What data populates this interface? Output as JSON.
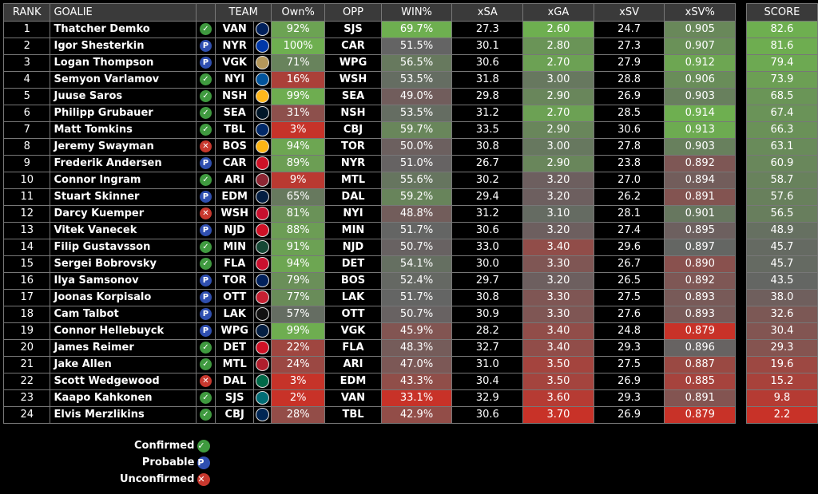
{
  "headers": {
    "rank": "RANK",
    "goalie": "GOALIE",
    "team": "TEAM",
    "own": "Own%",
    "opp": "OPP",
    "win": "WIN%",
    "xsa": "xSA",
    "xga": "xGA",
    "xsv": "xSV",
    "xsvp": "xSV%",
    "score": "SCORE"
  },
  "status_legend": {
    "C": {
      "label": "Confirmed",
      "glyph": "✓",
      "color": "#3f9a3f"
    },
    "P": {
      "label": "Probable",
      "glyph": "P",
      "color": "#2f4fb0"
    },
    "U": {
      "label": "Unconfirmed",
      "glyph": "✕",
      "color": "#c8382e"
    }
  },
  "team_colors": {
    "VAN": "#00205b",
    "NYR": "#0038a8",
    "VGK": "#b4975a",
    "NYI": "#00539b",
    "NSH": "#ffb81c",
    "SEA": "#001628",
    "TBL": "#002868",
    "BOS": "#fcb514",
    "CAR": "#ce1126",
    "ARI": "#8c2633",
    "EDM": "#041e42",
    "WSH": "#c8102e",
    "NJD": "#ce1126",
    "MIN": "#154734",
    "FLA": "#c8102e",
    "TOR": "#00205b",
    "OTT": "#c52032",
    "LAK": "#111111",
    "WPG": "#041e42",
    "DET": "#ce1126",
    "MTL": "#af1e2d",
    "DAL": "#006847",
    "SJS": "#006d75",
    "CBJ": "#002654"
  },
  "rows": [
    {
      "rank": "1",
      "goalie": "Thatcher Demko",
      "status": "C",
      "team": "VAN",
      "own": "92%",
      "opp": "SJS",
      "win": "69.7%",
      "xsa": "27.3",
      "xga": "2.60",
      "xsv": "24.7",
      "xsvp": "0.905",
      "score": "82.6"
    },
    {
      "rank": "2",
      "goalie": "Igor Shesterkin",
      "status": "P",
      "team": "NYR",
      "own": "100%",
      "opp": "CAR",
      "win": "51.5%",
      "xsa": "30.1",
      "xga": "2.80",
      "xsv": "27.3",
      "xsvp": "0.907",
      "score": "81.6"
    },
    {
      "rank": "3",
      "goalie": "Logan Thompson",
      "status": "P",
      "team": "VGK",
      "own": "71%",
      "opp": "WPG",
      "win": "56.5%",
      "xsa": "30.6",
      "xga": "2.70",
      "xsv": "27.9",
      "xsvp": "0.912",
      "score": "79.4"
    },
    {
      "rank": "4",
      "goalie": "Semyon Varlamov",
      "status": "C",
      "team": "NYI",
      "own": "16%",
      "opp": "WSH",
      "win": "53.5%",
      "xsa": "31.8",
      "xga": "3.00",
      "xsv": "28.8",
      "xsvp": "0.906",
      "score": "73.9"
    },
    {
      "rank": "5",
      "goalie": "Juuse Saros",
      "status": "C",
      "team": "NSH",
      "own": "99%",
      "opp": "SEA",
      "win": "49.0%",
      "xsa": "29.8",
      "xga": "2.90",
      "xsv": "26.9",
      "xsvp": "0.903",
      "score": "68.5"
    },
    {
      "rank": "6",
      "goalie": "Philipp Grubauer",
      "status": "C",
      "team": "SEA",
      "own": "31%",
      "opp": "NSH",
      "win": "53.5%",
      "xsa": "31.2",
      "xga": "2.70",
      "xsv": "28.5",
      "xsvp": "0.914",
      "score": "67.4"
    },
    {
      "rank": "7",
      "goalie": "Matt Tomkins",
      "status": "C",
      "team": "TBL",
      "own": "3%",
      "opp": "CBJ",
      "win": "59.7%",
      "xsa": "33.5",
      "xga": "2.90",
      "xsv": "30.6",
      "xsvp": "0.913",
      "score": "66.3"
    },
    {
      "rank": "8",
      "goalie": "Jeremy Swayman",
      "status": "U",
      "team": "BOS",
      "own": "94%",
      "opp": "TOR",
      "win": "50.0%",
      "xsa": "30.8",
      "xga": "3.00",
      "xsv": "27.8",
      "xsvp": "0.903",
      "score": "63.1"
    },
    {
      "rank": "9",
      "goalie": "Frederik Andersen",
      "status": "P",
      "team": "CAR",
      "own": "89%",
      "opp": "NYR",
      "win": "51.0%",
      "xsa": "26.7",
      "xga": "2.90",
      "xsv": "23.8",
      "xsvp": "0.892",
      "score": "60.9"
    },
    {
      "rank": "10",
      "goalie": "Connor Ingram",
      "status": "C",
      "team": "ARI",
      "own": "9%",
      "opp": "MTL",
      "win": "55.6%",
      "xsa": "30.2",
      "xga": "3.20",
      "xsv": "27.0",
      "xsvp": "0.894",
      "score": "58.7"
    },
    {
      "rank": "11",
      "goalie": "Stuart Skinner",
      "status": "P",
      "team": "EDM",
      "own": "65%",
      "opp": "DAL",
      "win": "59.2%",
      "xsa": "29.4",
      "xga": "3.20",
      "xsv": "26.2",
      "xsvp": "0.891",
      "score": "57.6"
    },
    {
      "rank": "12",
      "goalie": "Darcy Kuemper",
      "status": "U",
      "team": "WSH",
      "own": "81%",
      "opp": "NYI",
      "win": "48.8%",
      "xsa": "31.2",
      "xga": "3.10",
      "xsv": "28.1",
      "xsvp": "0.901",
      "score": "56.5"
    },
    {
      "rank": "13",
      "goalie": "Vitek Vanecek",
      "status": "P",
      "team": "NJD",
      "own": "88%",
      "opp": "MIN",
      "win": "51.7%",
      "xsa": "30.6",
      "xga": "3.20",
      "xsv": "27.4",
      "xsvp": "0.895",
      "score": "48.9"
    },
    {
      "rank": "14",
      "goalie": "Filip Gustavsson",
      "status": "C",
      "team": "MIN",
      "own": "91%",
      "opp": "NJD",
      "win": "50.7%",
      "xsa": "33.0",
      "xga": "3.40",
      "xsv": "29.6",
      "xsvp": "0.897",
      "score": "45.7"
    },
    {
      "rank": "15",
      "goalie": "Sergei Bobrovsky",
      "status": "C",
      "team": "FLA",
      "own": "94%",
      "opp": "DET",
      "win": "54.1%",
      "xsa": "30.0",
      "xga": "3.30",
      "xsv": "26.7",
      "xsvp": "0.890",
      "score": "45.7"
    },
    {
      "rank": "16",
      "goalie": "Ilya Samsonov",
      "status": "P",
      "team": "TOR",
      "own": "79%",
      "opp": "BOS",
      "win": "52.4%",
      "xsa": "29.7",
      "xga": "3.20",
      "xsv": "26.5",
      "xsvp": "0.892",
      "score": "43.5"
    },
    {
      "rank": "17",
      "goalie": "Joonas Korpisalo",
      "status": "P",
      "team": "OTT",
      "own": "77%",
      "opp": "LAK",
      "win": "51.7%",
      "xsa": "30.8",
      "xga": "3.30",
      "xsv": "27.5",
      "xsvp": "0.893",
      "score": "38.0"
    },
    {
      "rank": "18",
      "goalie": "Cam Talbot",
      "status": "P",
      "team": "LAK",
      "own": "57%",
      "opp": "OTT",
      "win": "50.7%",
      "xsa": "30.9",
      "xga": "3.30",
      "xsv": "27.6",
      "xsvp": "0.893",
      "score": "32.6"
    },
    {
      "rank": "19",
      "goalie": "Connor Hellebuyck",
      "status": "P",
      "team": "WPG",
      "own": "99%",
      "opp": "VGK",
      "win": "45.9%",
      "xsa": "28.2",
      "xga": "3.40",
      "xsv": "24.8",
      "xsvp": "0.879",
      "score": "30.4"
    },
    {
      "rank": "20",
      "goalie": "James Reimer",
      "status": "C",
      "team": "DET",
      "own": "22%",
      "opp": "FLA",
      "win": "48.3%",
      "xsa": "32.7",
      "xga": "3.40",
      "xsv": "29.3",
      "xsvp": "0.896",
      "score": "29.3"
    },
    {
      "rank": "21",
      "goalie": "Jake Allen",
      "status": "C",
      "team": "MTL",
      "own": "24%",
      "opp": "ARI",
      "win": "47.0%",
      "xsa": "31.0",
      "xga": "3.50",
      "xsv": "27.5",
      "xsvp": "0.887",
      "score": "19.6"
    },
    {
      "rank": "22",
      "goalie": "Scott Wedgewood",
      "status": "U",
      "team": "DAL",
      "own": "3%",
      "opp": "EDM",
      "win": "43.3%",
      "xsa": "30.4",
      "xga": "3.50",
      "xsv": "26.9",
      "xsvp": "0.885",
      "score": "15.2"
    },
    {
      "rank": "23",
      "goalie": "Kaapo Kahkonen",
      "status": "C",
      "team": "SJS",
      "own": "2%",
      "opp": "VAN",
      "win": "33.1%",
      "xsa": "32.9",
      "xga": "3.60",
      "xsv": "29.3",
      "xsvp": "0.891",
      "score": "9.8"
    },
    {
      "rank": "24",
      "goalie": "Elvis Merzlikins",
      "status": "C",
      "team": "CBJ",
      "own": "28%",
      "opp": "TBL",
      "win": "42.9%",
      "xsa": "30.6",
      "xga": "3.70",
      "xsv": "26.9",
      "xsvp": "0.879",
      "score": "2.2"
    }
  ]
}
